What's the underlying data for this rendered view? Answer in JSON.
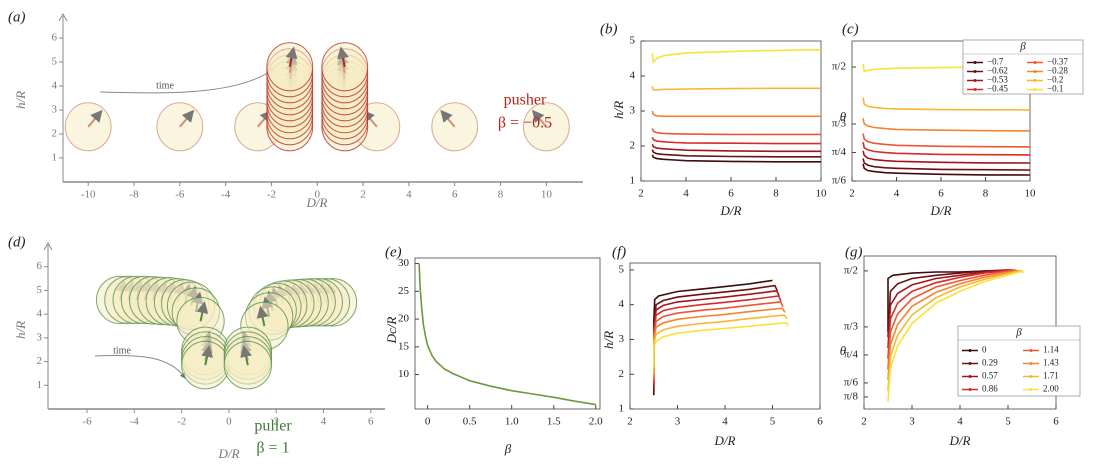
{
  "chart_data": [
    {
      "type": "scatter",
      "label": "(a)",
      "xlabel": "D/R",
      "ylabel": "h/R",
      "xlim": [
        -11.1,
        11.6
      ],
      "ylim": [
        0,
        7
      ],
      "xticks": [
        -10,
        -8,
        -6,
        -4,
        -2,
        0,
        2,
        4,
        6,
        8,
        10
      ],
      "yticks": [
        1,
        2,
        3,
        4,
        5,
        6
      ],
      "annotations": [
        "time",
        "pusher",
        "β = −0.5"
      ],
      "series": [
        {
          "color": "#cf8f7a",
          "x": [
            -10,
            -6,
            -2.6,
            2.6,
            6,
            10
          ],
          "values": [
            2.3,
            2.3,
            2.3,
            2.3,
            2.3,
            2.3
          ]
        },
        {
          "color": "#b3261e",
          "x": [
            -1.2,
            -1.2,
            -1.2,
            -1.2,
            -1.2,
            -1.2,
            -1.2,
            -1.2,
            -1.2,
            -1.2,
            -1.2
          ],
          "values": [
            2.3,
            2.55,
            2.8,
            3.05,
            3.3,
            3.55,
            3.8,
            4.05,
            4.3,
            4.55,
            4.8
          ]
        },
        {
          "color": "#b3261e",
          "x": [
            1.2,
            1.2,
            1.2,
            1.2,
            1.2,
            1.2,
            1.2,
            1.2,
            1.2,
            1.2,
            1.2
          ],
          "values": [
            2.3,
            2.55,
            2.8,
            3.05,
            3.3,
            3.55,
            3.8,
            4.05,
            4.3,
            4.55,
            4.8
          ]
        }
      ]
    },
    {
      "type": "line",
      "label": "(b)",
      "xlabel": "D/R",
      "ylabel": "h/R",
      "frame": true,
      "xlim": [
        2,
        10
      ],
      "ylim": [
        1,
        5
      ],
      "xticks": [
        2,
        4,
        6,
        8,
        10
      ],
      "yticks": [
        1,
        2,
        3,
        4,
        5
      ],
      "x": [
        2.5,
        2.55,
        2.7,
        3,
        3.5,
        4,
        6,
        8,
        10
      ],
      "series": [
        {
          "color": "#3d0c0c",
          "values": [
            1.75,
            1.68,
            1.64,
            1.62,
            1.6,
            1.58,
            1.56,
            1.55,
            1.55
          ]
        },
        {
          "color": "#6b1010",
          "values": [
            1.9,
            1.82,
            1.78,
            1.76,
            1.74,
            1.72,
            1.7,
            1.69,
            1.69
          ]
        },
        {
          "color": "#a3151a",
          "values": [
            2.05,
            1.98,
            1.94,
            1.92,
            1.9,
            1.88,
            1.86,
            1.85,
            1.85
          ]
        },
        {
          "color": "#d92a2a",
          "values": [
            2.25,
            2.18,
            2.14,
            2.12,
            2.1,
            2.09,
            2.08,
            2.07,
            2.07
          ]
        },
        {
          "color": "#ee5533",
          "values": [
            2.5,
            2.42,
            2.38,
            2.36,
            2.35,
            2.34,
            2.33,
            2.33,
            2.33
          ]
        },
        {
          "color": "#f5832f",
          "values": [
            3.0,
            2.9,
            2.86,
            2.85,
            2.85,
            2.85,
            2.85,
            2.85,
            2.85
          ]
        },
        {
          "color": "#f8b533",
          "values": [
            3.7,
            3.6,
            3.6,
            3.62,
            3.62,
            3.63,
            3.64,
            3.65,
            3.65
          ]
        },
        {
          "color": "#f7e235",
          "values": [
            4.65,
            4.4,
            4.5,
            4.58,
            4.62,
            4.66,
            4.7,
            4.73,
            4.75
          ]
        }
      ]
    },
    {
      "type": "line",
      "label": "(c)",
      "xlabel": "D/R",
      "ylabel": "θ",
      "frame": true,
      "legend": "top-right",
      "legend_title": "β",
      "xlim": [
        2,
        10
      ],
      "ylim": [
        0.5236,
        1.81
      ],
      "xticks": [
        2,
        4,
        6,
        8,
        10
      ],
      "yticks": [
        {
          "value": 0.5236,
          "label": "π/6"
        },
        {
          "value": 0.7854,
          "label": "π/4"
        },
        {
          "value": 1.0472,
          "label": "π/3"
        },
        {
          "value": 1.5708,
          "label": "π/2"
        }
      ],
      "x": [
        2.5,
        2.55,
        2.7,
        3,
        3.5,
        4,
        6,
        8,
        10
      ],
      "series": [
        {
          "name": "−0.7",
          "color": "#3d0c0c",
          "values": [
            0.68,
            0.64,
            0.62,
            0.61,
            0.6,
            0.595,
            0.585,
            0.58,
            0.579
          ]
        },
        {
          "name": "−0.62",
          "color": "#6b1010",
          "values": [
            0.73,
            0.69,
            0.67,
            0.655,
            0.645,
            0.64,
            0.63,
            0.627,
            0.625
          ]
        },
        {
          "name": "−0.53",
          "color": "#a3151a",
          "values": [
            0.8,
            0.76,
            0.735,
            0.72,
            0.71,
            0.705,
            0.695,
            0.69,
            0.689
          ]
        },
        {
          "name": "−0.45",
          "color": "#d92a2a",
          "values": [
            0.88,
            0.83,
            0.81,
            0.795,
            0.785,
            0.778,
            0.768,
            0.765,
            0.763
          ]
        },
        {
          "name": "−0.37",
          "color": "#ee5533",
          "values": [
            0.96,
            0.91,
            0.885,
            0.87,
            0.86,
            0.852,
            0.842,
            0.839,
            0.837
          ]
        },
        {
          "name": "−0.28",
          "color": "#f5832f",
          "values": [
            1.1,
            1.05,
            1.03,
            1.015,
            1.005,
            0.998,
            0.99,
            0.986,
            0.984
          ]
        },
        {
          "name": "−0.2",
          "color": "#f8b533",
          "values": [
            1.29,
            1.23,
            1.21,
            1.2,
            1.19,
            1.186,
            1.18,
            1.178,
            1.177
          ]
        },
        {
          "name": "−0.1",
          "color": "#f7e235",
          "values": [
            1.6,
            1.53,
            1.54,
            1.55,
            1.555,
            1.56,
            1.566,
            1.569,
            1.571
          ]
        }
      ]
    },
    {
      "type": "scatter",
      "label": "(d)",
      "xlabel": "D/R",
      "ylabel": "h/R",
      "xlim": [
        -7.65,
        6.6
      ],
      "ylim": [
        0,
        7
      ],
      "xticks": [
        -6,
        -4,
        -2,
        0,
        2,
        4,
        6
      ],
      "yticks": [
        1,
        2,
        3,
        4,
        5,
        6
      ],
      "annotations": [
        "time",
        "puller",
        "β = 1"
      ],
      "series": [
        {
          "color": "#4f8a45",
          "x": [
            -4.6,
            -4.25,
            -3.9,
            -3.55,
            -3.2,
            -2.85,
            -2.5,
            -2.15,
            -1.85,
            -1.6,
            -1.4,
            -1.2,
            -1.0,
            -1.0,
            -1.0,
            -1.0
          ],
          "values": [
            4.6,
            4.6,
            4.6,
            4.6,
            4.58,
            4.56,
            4.54,
            4.5,
            4.45,
            4.35,
            4.1,
            3.7,
            2.45,
            2.25,
            2.05,
            1.85
          ]
        },
        {
          "color": "#4f8a45",
          "x": [
            4.4,
            4.1,
            3.8,
            3.5,
            3.2,
            2.9,
            2.6,
            2.3,
            2.05,
            1.85,
            1.7,
            1.5,
            0.8,
            0.8,
            0.8,
            0.8
          ],
          "values": [
            4.5,
            4.5,
            4.5,
            4.5,
            4.48,
            4.46,
            4.44,
            4.4,
            4.3,
            4.15,
            3.9,
            3.5,
            2.45,
            2.25,
            2.05,
            1.85
          ]
        }
      ]
    },
    {
      "type": "line",
      "label": "(e)",
      "xlabel": "β",
      "ylabel": "Dc/R",
      "frame": true,
      "xlim": [
        -0.15,
        2.05
      ],
      "ylim": [
        3.8,
        31
      ],
      "xticks": [
        0,
        0.5,
        {
          "value": 1,
          "label": "1.0"
        },
        1.5,
        {
          "value": 2,
          "label": "2.0"
        }
      ],
      "yticks": [
        10,
        15,
        20,
        25,
        30
      ],
      "x": [
        -0.1,
        -0.09,
        -0.07,
        -0.05,
        -0.02,
        0,
        0.05,
        0.1,
        0.2,
        0.3,
        0.5,
        0.75,
        1,
        1.25,
        1.5,
        1.75,
        2
      ],
      "series": [
        {
          "color": "#6a9a3a",
          "values": [
            30,
            26,
            22,
            19,
            16.5,
            15.3,
            13.5,
            12.4,
            11,
            10.2,
            8.9,
            7.9,
            7.1,
            6.5,
            5.9,
            5.2,
            4.6
          ]
        }
      ]
    },
    {
      "type": "line",
      "label": "(f)",
      "xlabel": "D/R",
      "ylabel": "h/R",
      "frame": true,
      "xlim": [
        2,
        6
      ],
      "ylim": [
        1,
        5.2
      ],
      "xticks": [
        2,
        3,
        4,
        5,
        6
      ],
      "yticks": [
        1,
        2,
        3,
        4,
        5
      ],
      "series": [
        {
          "color": "#3d0c0c",
          "x": [
            2.5,
            2.5,
            2.52,
            2.6,
            3,
            3.5,
            4,
            4.5,
            5.0
          ],
          "values": [
            1.4,
            3.5,
            4.15,
            4.25,
            4.38,
            4.45,
            4.52,
            4.6,
            4.7
          ]
        },
        {
          "color": "#6b1010",
          "x": [
            2.5,
            2.5,
            2.55,
            2.7,
            3,
            3.5,
            4,
            4.5,
            5.05,
            5.1
          ],
          "values": [
            1.5,
            3.4,
            4.0,
            4.12,
            4.22,
            4.3,
            4.37,
            4.44,
            4.55,
            4.4
          ]
        },
        {
          "color": "#a3151a",
          "x": [
            2.5,
            2.5,
            2.55,
            2.7,
            3,
            3.5,
            4,
            4.5,
            5.09,
            5.14
          ],
          "values": [
            1.6,
            3.3,
            3.85,
            3.98,
            4.08,
            4.15,
            4.22,
            4.3,
            4.4,
            4.25
          ]
        },
        {
          "color": "#d92a2a",
          "x": [
            2.5,
            2.5,
            2.55,
            2.7,
            3,
            3.5,
            4,
            4.5,
            5.13,
            5.18
          ],
          "values": [
            1.7,
            3.2,
            3.7,
            3.83,
            3.92,
            4.0,
            4.07,
            4.14,
            4.25,
            4.1
          ]
        },
        {
          "color": "#ee5533",
          "x": [
            2.5,
            2.5,
            2.55,
            2.7,
            3,
            3.5,
            4,
            4.5,
            5.17,
            5.22
          ],
          "values": [
            1.8,
            3.1,
            3.52,
            3.66,
            3.76,
            3.84,
            3.9,
            3.98,
            4.08,
            3.95
          ]
        },
        {
          "color": "#f5832f",
          "x": [
            2.5,
            2.5,
            2.55,
            2.7,
            3,
            3.5,
            4,
            4.5,
            5.21,
            5.26
          ],
          "values": [
            1.9,
            3.0,
            3.35,
            3.48,
            3.58,
            3.66,
            3.72,
            3.8,
            3.9,
            3.78
          ]
        },
        {
          "color": "#f8b533",
          "x": [
            2.5,
            2.5,
            2.55,
            2.7,
            3,
            3.5,
            4,
            4.5,
            5.25,
            5.3
          ],
          "values": [
            2.0,
            2.9,
            3.15,
            3.28,
            3.38,
            3.46,
            3.52,
            3.6,
            3.7,
            3.6
          ]
        },
        {
          "color": "#f7e235",
          "x": [
            2.5,
            2.5,
            2.55,
            2.7,
            3,
            3.5,
            4,
            4.5,
            5.29,
            5.34
          ],
          "values": [
            2.2,
            2.8,
            2.95,
            3.08,
            3.18,
            3.26,
            3.32,
            3.38,
            3.48,
            3.4
          ]
        }
      ]
    },
    {
      "type": "line",
      "label": "(g)",
      "xlabel": "D/R",
      "ylabel": "θ",
      "frame": true,
      "legend": "lower-right",
      "legend_title": "β",
      "xlim": [
        2,
        6
      ],
      "ylim": [
        0.28,
        1.71
      ],
      "xticks": [
        2,
        3,
        4,
        5,
        6
      ],
      "yticks": [
        {
          "value": 0.3927,
          "label": "π/8"
        },
        {
          "value": 0.5236,
          "label": "π/6"
        },
        {
          "value": 0.7854,
          "label": "π/4"
        },
        {
          "value": 1.0472,
          "label": "π/3"
        },
        {
          "value": 1.5708,
          "label": "π/2"
        }
      ],
      "series": [
        {
          "name": "0",
          "color": "#3d0c0c",
          "x": [
            2.5,
            2.5,
            2.6,
            3,
            3.5,
            4,
            4.5,
            5.0
          ],
          "values": [
            1.0,
            1.5,
            1.53,
            1.55,
            1.56,
            1.56,
            1.57,
            1.57
          ]
        },
        {
          "name": "0.29",
          "color": "#6b1010",
          "x": [
            2.5,
            2.55,
            2.7,
            3,
            3.5,
            4,
            4.5,
            5,
            5.1
          ],
          "values": [
            0.95,
            1.38,
            1.45,
            1.5,
            1.53,
            1.55,
            1.57,
            1.58,
            1.57
          ]
        },
        {
          "name": "0.57",
          "color": "#a3151a",
          "x": [
            2.5,
            2.55,
            2.7,
            3,
            3.5,
            4,
            4.5,
            5.04,
            5.14
          ],
          "values": [
            0.85,
            1.25,
            1.36,
            1.44,
            1.5,
            1.53,
            1.56,
            1.58,
            1.57
          ]
        },
        {
          "name": "0.86",
          "color": "#d92a2a",
          "x": [
            2.5,
            2.55,
            2.7,
            3,
            3.5,
            4,
            4.5,
            5.08,
            5.18
          ],
          "values": [
            0.75,
            1.12,
            1.27,
            1.38,
            1.46,
            1.51,
            1.55,
            1.58,
            1.57
          ]
        },
        {
          "name": "1.14",
          "color": "#ee5533",
          "x": [
            2.5,
            2.55,
            2.7,
            3,
            3.5,
            4,
            4.5,
            5.12,
            5.22
          ],
          "values": [
            0.65,
            1.0,
            1.17,
            1.31,
            1.42,
            1.48,
            1.53,
            1.58,
            1.57
          ]
        },
        {
          "name": "1.43",
          "color": "#f5832f",
          "x": [
            2.5,
            2.55,
            2.7,
            3,
            3.5,
            4,
            4.5,
            5.16,
            5.26
          ],
          "values": [
            0.55,
            0.88,
            1.07,
            1.24,
            1.37,
            1.45,
            1.51,
            1.57,
            1.57
          ]
        },
        {
          "name": "1.71",
          "color": "#f8b533",
          "x": [
            2.5,
            2.55,
            2.7,
            3,
            3.5,
            4,
            4.5,
            5.2,
            5.3
          ],
          "values": [
            0.45,
            0.77,
            0.97,
            1.16,
            1.32,
            1.42,
            1.49,
            1.57,
            1.57
          ]
        },
        {
          "name": "2.00",
          "color": "#f7e235",
          "x": [
            2.5,
            2.55,
            2.7,
            3,
            3.5,
            4,
            4.5,
            5.24,
            5.34
          ],
          "values": [
            0.35,
            0.66,
            0.87,
            1.08,
            1.27,
            1.38,
            1.47,
            1.56,
            1.56
          ]
        }
      ]
    }
  ]
}
